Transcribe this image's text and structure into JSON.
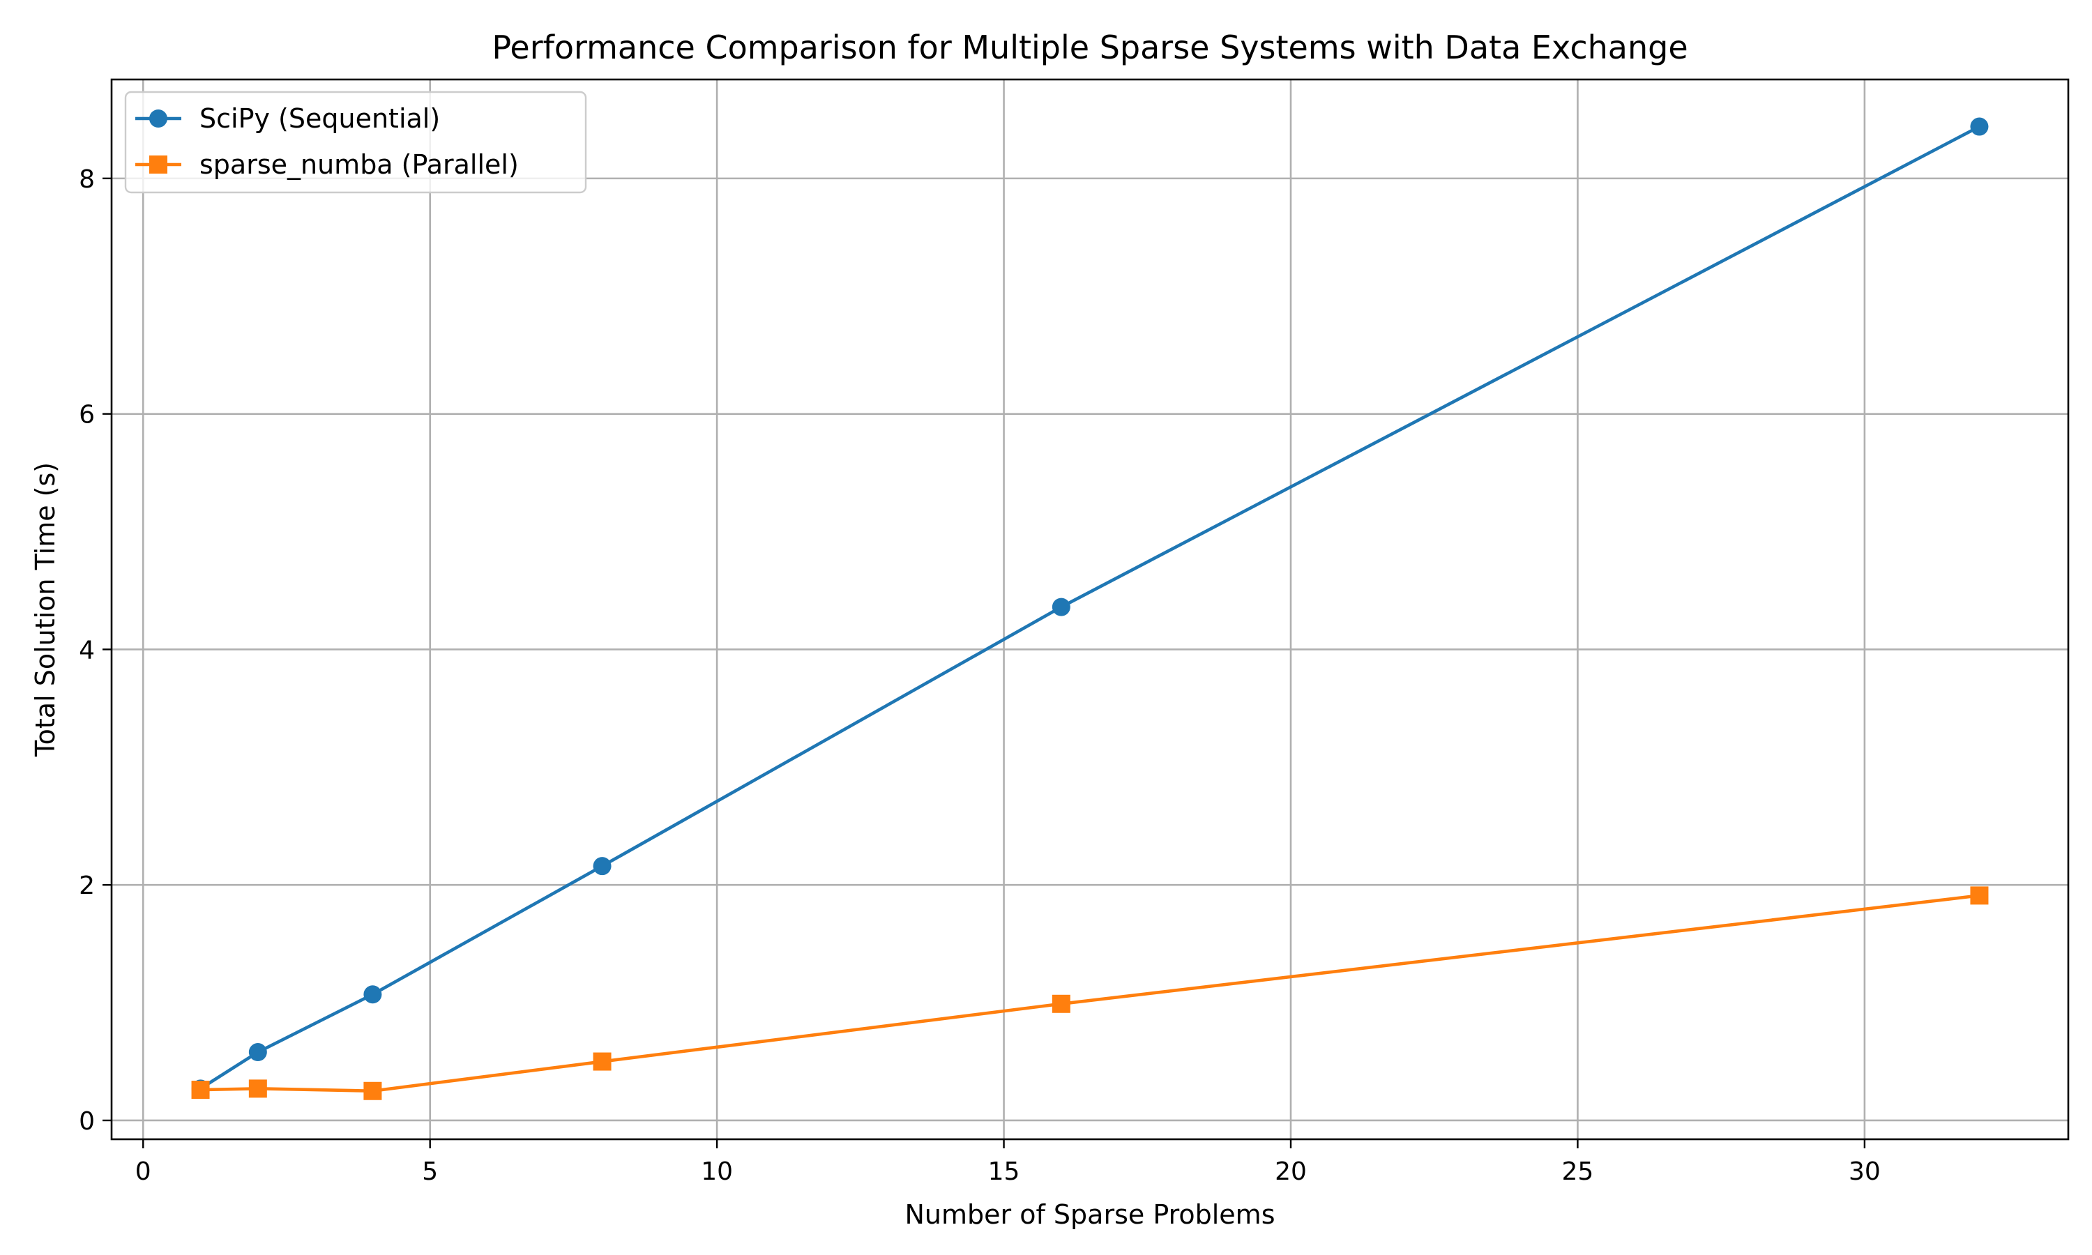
{
  "chart_data": {
    "type": "line",
    "title": "Performance Comparison for Multiple Sparse Systems with Data Exchange",
    "xlabel": "Number of Sparse Problems",
    "ylabel": "Total Solution Time (s)",
    "xlim": [
      -0.55,
      33.55
    ],
    "ylim": [
      -0.16,
      8.84
    ],
    "xticks": [
      0,
      5,
      10,
      15,
      20,
      25,
      30
    ],
    "yticks": [
      0,
      2,
      4,
      6,
      8
    ],
    "grid": true,
    "legend_position": "top-left",
    "series": [
      {
        "name": "SciPy (Sequential)",
        "color": "#1f77b4",
        "marker": "circle",
        "x": [
          1,
          2,
          4,
          8,
          16,
          32
        ],
        "y": [
          0.27,
          0.58,
          1.07,
          2.16,
          4.36,
          8.44
        ]
      },
      {
        "name": "sparse_numba (Parallel)",
        "color": "#ff7f0e",
        "marker": "square",
        "x": [
          1,
          2,
          4,
          8,
          16,
          32
        ],
        "y": [
          0.26,
          0.27,
          0.25,
          0.5,
          0.99,
          1.91
        ]
      }
    ]
  }
}
